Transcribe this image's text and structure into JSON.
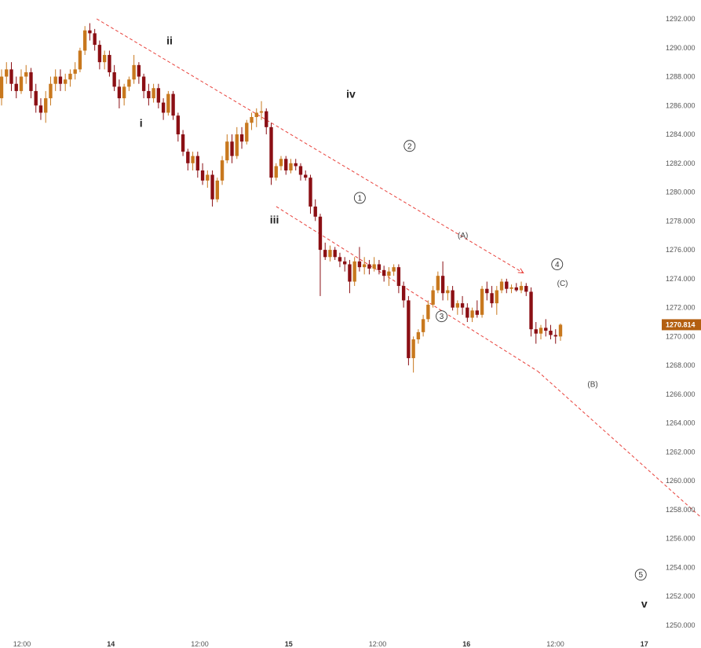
{
  "chart_data": {
    "type": "candlestick",
    "y_axis": {
      "position": "right",
      "ticks": [
        "1292.000",
        "1290.000",
        "1288.000",
        "1286.000",
        "1284.000",
        "1282.000",
        "1280.000",
        "1278.000",
        "1276.000",
        "1274.000",
        "1272.000",
        "1270.000",
        "1268.000",
        "1266.000",
        "1264.000",
        "1262.000",
        "1260.000",
        "1258.000",
        "1256.000",
        "1254.000",
        "1252.000",
        "1250.000"
      ],
      "ylim": [
        1249.6,
        1293.1
      ]
    },
    "x_axis": {
      "labels": [
        {
          "text": "12:00",
          "t": 0.5,
          "bold": false
        },
        {
          "text": "14",
          "t": 1.0,
          "bold": true
        },
        {
          "text": "12:00",
          "t": 1.5,
          "bold": false
        },
        {
          "text": "15",
          "t": 2.0,
          "bold": true
        },
        {
          "text": "12:00",
          "t": 2.5,
          "bold": false
        },
        {
          "text": "16",
          "t": 3.0,
          "bold": true
        },
        {
          "text": "12:00",
          "t": 3.5,
          "bold": false
        },
        {
          "text": "17",
          "t": 4.0,
          "bold": true
        }
      ]
    },
    "current_price": {
      "text": "1270.814",
      "value": 1270.814,
      "color": "#b35f10"
    },
    "colors": {
      "up": "#c8781e",
      "down": "#8b0f14",
      "trendline": "#e8413b",
      "axis_text": "#555555"
    },
    "candles": [
      [
        1286.5,
        1288.5,
        1286.0,
        1288.0
      ],
      [
        1288.0,
        1289.0,
        1287.5,
        1288.5
      ],
      [
        1288.5,
        1289.0,
        1287.0,
        1287.5
      ],
      [
        1287.5,
        1288.0,
        1286.5,
        1287.0
      ],
      [
        1287.0,
        1288.5,
        1286.8,
        1288.0
      ],
      [
        1288.0,
        1288.8,
        1287.5,
        1288.3
      ],
      [
        1288.3,
        1288.6,
        1286.5,
        1287.0
      ],
      [
        1287.0,
        1287.5,
        1285.5,
        1286.0
      ],
      [
        1286.0,
        1286.5,
        1285.0,
        1285.5
      ],
      [
        1285.5,
        1287.0,
        1284.8,
        1286.5
      ],
      [
        1286.5,
        1288.0,
        1286.0,
        1287.5
      ],
      [
        1287.5,
        1288.5,
        1287.0,
        1288.0
      ],
      [
        1288.0,
        1288.5,
        1287.0,
        1287.5
      ],
      [
        1287.5,
        1288.2,
        1287.0,
        1287.8
      ],
      [
        1287.8,
        1288.5,
        1287.3,
        1288.2
      ],
      [
        1288.2,
        1289.0,
        1287.8,
        1288.5
      ],
      [
        1288.5,
        1290.0,
        1288.3,
        1289.8
      ],
      [
        1289.8,
        1291.5,
        1289.5,
        1291.2
      ],
      [
        1291.2,
        1291.7,
        1290.5,
        1291.0
      ],
      [
        1291.0,
        1291.3,
        1289.8,
        1290.2
      ],
      [
        1290.2,
        1290.5,
        1288.5,
        1289.0
      ],
      [
        1289.0,
        1289.8,
        1288.5,
        1289.5
      ],
      [
        1289.5,
        1289.8,
        1288.0,
        1288.3
      ],
      [
        1288.3,
        1288.8,
        1287.0,
        1287.3
      ],
      [
        1287.3,
        1287.8,
        1285.8,
        1286.5
      ],
      [
        1286.5,
        1287.5,
        1286.0,
        1287.3
      ],
      [
        1287.3,
        1288.0,
        1287.0,
        1287.8
      ],
      [
        1287.8,
        1289.5,
        1287.5,
        1288.8
      ],
      [
        1288.8,
        1289.0,
        1287.5,
        1288.0
      ],
      [
        1288.0,
        1288.2,
        1286.5,
        1287.0
      ],
      [
        1287.0,
        1287.5,
        1286.0,
        1286.5
      ],
      [
        1286.5,
        1287.5,
        1286.2,
        1287.2
      ],
      [
        1287.2,
        1287.5,
        1285.8,
        1286.2
      ],
      [
        1286.2,
        1286.5,
        1285.0,
        1285.5
      ],
      [
        1285.5,
        1287.0,
        1285.3,
        1286.8
      ],
      [
        1286.8,
        1287.0,
        1285.0,
        1285.3
      ],
      [
        1285.3,
        1285.5,
        1283.5,
        1284.0
      ],
      [
        1284.0,
        1284.3,
        1282.5,
        1282.8
      ],
      [
        1282.8,
        1283.0,
        1281.5,
        1282.0
      ],
      [
        1282.0,
        1282.8,
        1281.5,
        1282.5
      ],
      [
        1282.5,
        1282.8,
        1281.0,
        1281.5
      ],
      [
        1281.5,
        1282.0,
        1280.5,
        1280.8
      ],
      [
        1280.8,
        1281.5,
        1280.3,
        1281.2
      ],
      [
        1281.2,
        1281.5,
        1279.0,
        1279.5
      ],
      [
        1279.5,
        1281.0,
        1279.3,
        1280.8
      ],
      [
        1280.8,
        1282.5,
        1280.5,
        1282.2
      ],
      [
        1282.2,
        1284.0,
        1282.0,
        1283.5
      ],
      [
        1283.5,
        1284.0,
        1282.0,
        1282.5
      ],
      [
        1282.5,
        1284.5,
        1282.3,
        1284.0
      ],
      [
        1284.0,
        1284.5,
        1283.0,
        1283.5
      ],
      [
        1283.5,
        1285.0,
        1283.3,
        1284.8
      ],
      [
        1284.8,
        1285.5,
        1284.3,
        1285.2
      ],
      [
        1285.2,
        1285.8,
        1284.5,
        1285.5
      ],
      [
        1285.5,
        1286.3,
        1285.0,
        1285.6
      ],
      [
        1285.6,
        1285.8,
        1284.0,
        1284.5
      ],
      [
        1284.5,
        1284.8,
        1280.5,
        1281.0
      ],
      [
        1281.0,
        1282.0,
        1280.8,
        1281.8
      ],
      [
        1281.8,
        1282.5,
        1281.5,
        1282.3
      ],
      [
        1282.3,
        1282.5,
        1281.2,
        1281.5
      ],
      [
        1281.5,
        1282.3,
        1281.3,
        1282.0
      ],
      [
        1282.0,
        1282.3,
        1281.5,
        1281.8
      ],
      [
        1281.8,
        1282.0,
        1280.8,
        1281.2
      ],
      [
        1281.2,
        1281.5,
        1280.8,
        1281.0
      ],
      [
        1281.0,
        1281.2,
        1278.5,
        1279.0
      ],
      [
        1279.0,
        1279.5,
        1278.0,
        1278.3
      ],
      [
        1278.3,
        1278.5,
        1272.8,
        1276.0
      ],
      [
        1276.0,
        1276.5,
        1275.3,
        1275.5
      ],
      [
        1275.5,
        1276.3,
        1275.2,
        1276.0
      ],
      [
        1276.0,
        1276.2,
        1275.3,
        1275.5
      ],
      [
        1275.5,
        1275.8,
        1274.8,
        1275.2
      ],
      [
        1275.2,
        1275.5,
        1274.5,
        1275.0
      ],
      [
        1275.0,
        1275.3,
        1273.0,
        1273.8
      ],
      [
        1273.8,
        1275.5,
        1273.5,
        1275.2
      ],
      [
        1275.2,
        1276.2,
        1274.5,
        1274.8
      ],
      [
        1274.8,
        1275.5,
        1274.3,
        1275.0
      ],
      [
        1275.0,
        1275.3,
        1274.3,
        1274.7
      ],
      [
        1274.7,
        1275.5,
        1274.5,
        1275.0
      ],
      [
        1275.0,
        1275.3,
        1274.3,
        1274.6
      ],
      [
        1274.6,
        1274.9,
        1273.8,
        1274.2
      ],
      [
        1274.2,
        1274.8,
        1273.5,
        1274.5
      ],
      [
        1274.5,
        1275.0,
        1274.2,
        1274.8
      ],
      [
        1274.8,
        1275.0,
        1273.0,
        1273.5
      ],
      [
        1273.5,
        1273.8,
        1272.0,
        1272.5
      ],
      [
        1272.5,
        1272.8,
        1268.0,
        1268.5
      ],
      [
        1268.5,
        1270.0,
        1267.5,
        1269.8
      ],
      [
        1269.8,
        1270.5,
        1269.5,
        1270.3
      ],
      [
        1270.3,
        1271.5,
        1270.0,
        1271.2
      ],
      [
        1271.2,
        1272.5,
        1271.0,
        1272.2
      ],
      [
        1272.2,
        1273.5,
        1272.0,
        1273.2
      ],
      [
        1273.2,
        1274.5,
        1273.0,
        1274.2
      ],
      [
        1274.2,
        1275.2,
        1272.5,
        1273.0
      ],
      [
        1273.0,
        1273.5,
        1272.5,
        1273.2
      ],
      [
        1273.2,
        1273.5,
        1271.8,
        1272.0
      ],
      [
        1272.0,
        1272.5,
        1271.5,
        1272.3
      ],
      [
        1272.3,
        1272.8,
        1271.5,
        1272.0
      ],
      [
        1272.0,
        1272.3,
        1271.0,
        1271.3
      ],
      [
        1271.3,
        1272.0,
        1271.0,
        1271.8
      ],
      [
        1271.8,
        1272.5,
        1271.3,
        1271.5
      ],
      [
        1271.5,
        1273.5,
        1271.3,
        1273.3
      ],
      [
        1273.3,
        1273.8,
        1272.5,
        1273.0
      ],
      [
        1273.0,
        1273.5,
        1272.0,
        1272.3
      ],
      [
        1272.3,
        1273.5,
        1271.5,
        1273.2
      ],
      [
        1273.2,
        1274.0,
        1273.0,
        1273.8
      ],
      [
        1273.8,
        1274.0,
        1273.0,
        1273.3
      ],
      [
        1273.3,
        1273.6,
        1273.0,
        1273.4
      ],
      [
        1273.4,
        1273.7,
        1273.1,
        1273.2
      ],
      [
        1273.2,
        1273.8,
        1273.0,
        1273.5
      ],
      [
        1273.5,
        1273.7,
        1272.8,
        1273.1
      ],
      [
        1273.1,
        1273.4,
        1270.0,
        1270.5
      ],
      [
        1270.5,
        1271.0,
        1269.5,
        1270.2
      ],
      [
        1270.2,
        1270.8,
        1269.8,
        1270.6
      ],
      [
        1270.6,
        1271.2,
        1270.0,
        1270.4
      ],
      [
        1270.4,
        1270.8,
        1269.8,
        1270.1
      ],
      [
        1270.1,
        1270.5,
        1269.5,
        1270.0
      ],
      [
        1270.0,
        1270.9,
        1269.7,
        1270.814
      ]
    ],
    "trendlines": [
      {
        "from": [
          0.92,
          1292.0
        ],
        "to": [
          3.32,
          1274.4
        ]
      },
      {
        "from": [
          1.93,
          1279.0
        ],
        "to": [
          3.4,
          1267.6
        ]
      },
      {
        "from": [
          3.4,
          1267.6
        ],
        "to": [
          4.58,
          1254.6
        ]
      }
    ],
    "annotations": [
      {
        "text": "i",
        "t": 1.17,
        "y": 1284.8,
        "style": "bold"
      },
      {
        "text": "ii",
        "t": 1.33,
        "y": 1290.5,
        "style": "bold"
      },
      {
        "text": "iii",
        "t": 1.92,
        "y": 1278.1,
        "style": "bold"
      },
      {
        "text": "iv",
        "t": 2.35,
        "y": 1286.8,
        "style": "bold"
      },
      {
        "text": "v",
        "t": 4.0,
        "y": 1251.5,
        "style": "bold"
      },
      {
        "text": "1",
        "t": 2.4,
        "y": 1279.6,
        "style": "circle"
      },
      {
        "text": "2",
        "t": 2.68,
        "y": 1283.2,
        "style": "circle"
      },
      {
        "text": "3",
        "t": 2.86,
        "y": 1271.4,
        "style": "circle"
      },
      {
        "text": "4",
        "t": 3.51,
        "y": 1275.0,
        "style": "circle"
      },
      {
        "text": "5",
        "t": 3.98,
        "y": 1253.5,
        "style": "circle"
      },
      {
        "text": "(A)",
        "t": 2.98,
        "y": 1277.0,
        "style": "small"
      },
      {
        "text": "(B)",
        "t": 3.71,
        "y": 1266.7,
        "style": "small"
      },
      {
        "text": "(C)",
        "t": 3.54,
        "y": 1273.7,
        "style": "small"
      }
    ]
  }
}
